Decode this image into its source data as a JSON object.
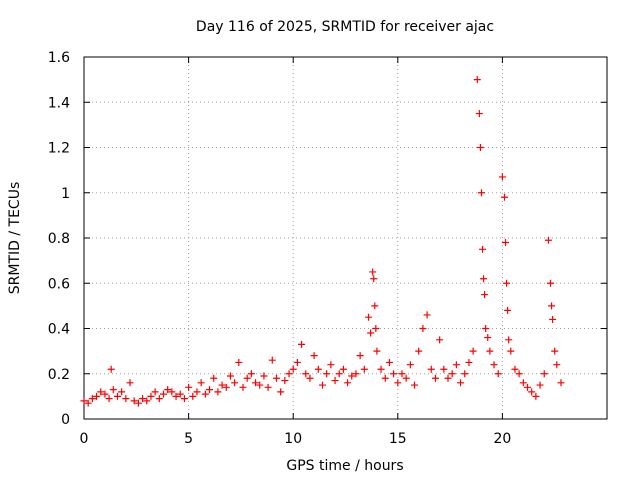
{
  "chart_data": {
    "type": "scatter",
    "title": "Day 116 of 2025, SRMTID for receiver ajac",
    "xlabel": "GPS time / hours",
    "ylabel": "SRMTID / TECUs",
    "xlim": [
      0,
      25
    ],
    "ylim": [
      0,
      1.6
    ],
    "xticks": [
      0,
      5,
      10,
      15,
      20
    ],
    "yticks": [
      0,
      0.2,
      0.4,
      0.6,
      0.8,
      1,
      1.2,
      1.4,
      1.6
    ],
    "xtick_labels": [
      "0",
      "5",
      "10",
      "15",
      "20"
    ],
    "ytick_labels": [
      "0",
      "0.2",
      "0.4",
      "0.6",
      "0.8",
      "1",
      "1.2",
      "1.4",
      "1.6"
    ],
    "grid": true,
    "marker": "+",
    "marker_color": "#ff0000",
    "series": [
      {
        "name": "SRMTID",
        "x": [
          0.0,
          0.2,
          0.4,
          0.6,
          0.8,
          1.0,
          1.2,
          1.3,
          1.4,
          1.6,
          1.8,
          2.0,
          2.2,
          2.4,
          2.6,
          2.8,
          3.0,
          3.2,
          3.4,
          3.6,
          3.8,
          4.0,
          4.2,
          4.4,
          4.6,
          4.8,
          5.0,
          5.2,
          5.4,
          5.6,
          5.8,
          6.0,
          6.2,
          6.4,
          6.6,
          6.8,
          7.0,
          7.2,
          7.4,
          7.6,
          7.8,
          8.0,
          8.2,
          8.4,
          8.6,
          8.8,
          9.0,
          9.2,
          9.4,
          9.6,
          9.8,
          10.0,
          10.2,
          10.4,
          10.6,
          10.8,
          11.0,
          11.2,
          11.4,
          11.6,
          11.8,
          12.0,
          12.2,
          12.4,
          12.6,
          12.8,
          13.0,
          13.2,
          13.4,
          13.6,
          13.7,
          13.8,
          13.85,
          13.9,
          13.95,
          14.0,
          14.2,
          14.4,
          14.6,
          14.8,
          15.0,
          15.2,
          15.4,
          15.6,
          15.8,
          16.0,
          16.2,
          16.4,
          16.6,
          16.8,
          17.0,
          17.2,
          17.4,
          17.6,
          17.8,
          18.0,
          18.2,
          18.4,
          18.6,
          18.8,
          18.9,
          18.95,
          19.0,
          19.05,
          19.1,
          19.15,
          19.2,
          19.3,
          19.4,
          19.6,
          19.8,
          20.0,
          20.1,
          20.15,
          20.2,
          20.25,
          20.3,
          20.4,
          20.6,
          20.8,
          21.0,
          21.2,
          21.4,
          21.6,
          21.8,
          22.0,
          22.2,
          22.3,
          22.35,
          22.4,
          22.5,
          22.6,
          22.8
        ],
        "y": [
          0.08,
          0.07,
          0.09,
          0.1,
          0.12,
          0.11,
          0.09,
          0.22,
          0.13,
          0.1,
          0.12,
          0.09,
          0.16,
          0.08,
          0.07,
          0.09,
          0.08,
          0.1,
          0.12,
          0.09,
          0.11,
          0.13,
          0.12,
          0.1,
          0.11,
          0.09,
          0.14,
          0.1,
          0.12,
          0.16,
          0.11,
          0.13,
          0.18,
          0.12,
          0.15,
          0.14,
          0.19,
          0.16,
          0.25,
          0.14,
          0.18,
          0.2,
          0.16,
          0.15,
          0.19,
          0.14,
          0.26,
          0.18,
          0.12,
          0.17,
          0.2,
          0.22,
          0.25,
          0.33,
          0.2,
          0.18,
          0.28,
          0.22,
          0.15,
          0.2,
          0.24,
          0.17,
          0.2,
          0.22,
          0.16,
          0.19,
          0.2,
          0.28,
          0.22,
          0.45,
          0.38,
          0.65,
          0.62,
          0.5,
          0.4,
          0.3,
          0.22,
          0.18,
          0.25,
          0.2,
          0.16,
          0.2,
          0.18,
          0.24,
          0.15,
          0.3,
          0.4,
          0.46,
          0.22,
          0.18,
          0.35,
          0.22,
          0.18,
          0.2,
          0.24,
          0.16,
          0.2,
          0.25,
          0.3,
          1.5,
          1.35,
          1.2,
          1.0,
          0.75,
          0.62,
          0.55,
          0.4,
          0.36,
          0.3,
          0.24,
          0.2,
          1.07,
          0.98,
          0.78,
          0.6,
          0.48,
          0.35,
          0.3,
          0.22,
          0.2,
          0.16,
          0.14,
          0.12,
          0.1,
          0.15,
          0.2,
          0.79,
          0.6,
          0.5,
          0.44,
          0.3,
          0.24,
          0.16
        ]
      }
    ]
  }
}
